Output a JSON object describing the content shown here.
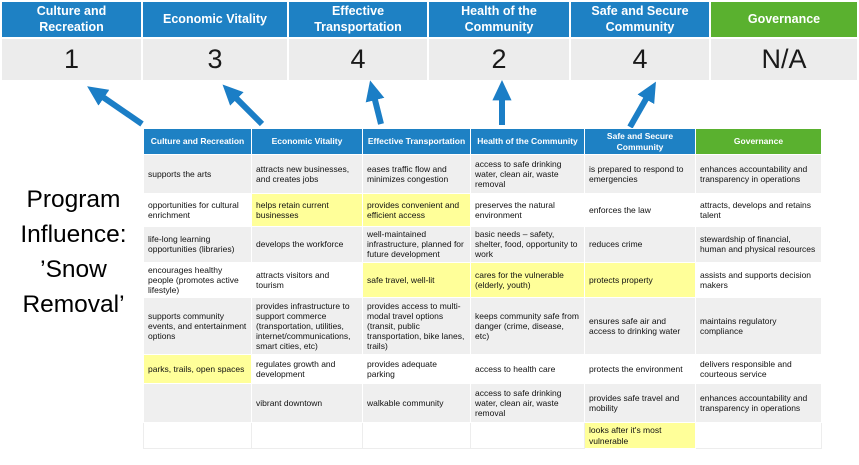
{
  "colors": {
    "header_blue": "#1e81c4",
    "header_green": "#5ab12f",
    "highlight_yellow": "#ffff99",
    "score_row_bg": "#ececec",
    "row_band_gray": "#efefef",
    "arrow_blue": "#1b7ec6"
  },
  "summary": {
    "columns": [
      {
        "label": "Culture and Recreation",
        "score": "1"
      },
      {
        "label": "Economic Vitality",
        "score": "3"
      },
      {
        "label": "Effective Transportation",
        "score": "4"
      },
      {
        "label": "Health of the Community",
        "score": "2"
      },
      {
        "label": "Safe and Secure Community",
        "score": "4"
      },
      {
        "label": "Governance",
        "score": "N/A"
      }
    ]
  },
  "program_label": "Program Influence: ’Snow Removal’",
  "matrix": {
    "headers": [
      "Culture and Recreation",
      "Economic Vitality",
      "Effective Transportation",
      "Health of the Community",
      "Safe and Secure Community",
      "Governance"
    ],
    "rows": [
      {
        "cells": [
          {
            "text": "supports the arts",
            "highlight": false
          },
          {
            "text": "attracts new businesses, and creates jobs",
            "highlight": false
          },
          {
            "text": "eases traffic flow and minimizes congestion",
            "highlight": true
          },
          {
            "text": "access to safe drinking water, clean air, waste removal",
            "highlight": false
          },
          {
            "text": "is prepared to respond to emergencies",
            "highlight": true
          },
          {
            "text": "enhances accountability and transparency in operations",
            "highlight": false
          }
        ]
      },
      {
        "cells": [
          {
            "text": "opportunities for cultural enrichment",
            "highlight": false
          },
          {
            "text": "helps retain current businesses",
            "highlight": true
          },
          {
            "text": "provides convenient and efficient access",
            "highlight": true
          },
          {
            "text": "preserves the natural environment",
            "highlight": false
          },
          {
            "text": "enforces the law",
            "highlight": false
          },
          {
            "text": "attracts, develops and retains talent",
            "highlight": false
          }
        ]
      },
      {
        "cells": [
          {
            "text": "life-long learning opportunities (libraries)",
            "highlight": false
          },
          {
            "text": "develops the workforce",
            "highlight": false
          },
          {
            "text": "well-maintained infrastructure, planned for future development",
            "highlight": false
          },
          {
            "text": "basic needs – safety, shelter, food, opportunity to work",
            "highlight": true
          },
          {
            "text": "reduces crime",
            "highlight": false
          },
          {
            "text": "stewardship of financial, human and physical resources",
            "highlight": false
          }
        ]
      },
      {
        "cells": [
          {
            "text": "encourages healthy people (promotes active lifestyle)",
            "highlight": false
          },
          {
            "text": "attracts visitors and tourism",
            "highlight": false
          },
          {
            "text": "safe travel, well-lit",
            "highlight": true
          },
          {
            "text": "cares for the vulnerable (elderly, youth)",
            "highlight": true
          },
          {
            "text": "protects property",
            "highlight": true
          },
          {
            "text": "assists and supports decision makers",
            "highlight": false
          }
        ]
      },
      {
        "cells": [
          {
            "text": "supports community events, and entertainment options",
            "highlight": false
          },
          {
            "text": "provides infrastructure to support commerce (transportation, utilities, internet/communications, smart cities, etc)",
            "highlight": true
          },
          {
            "text": "provides access to multi-modal travel options (transit, public transportation, bike lanes, trails)",
            "highlight": true
          },
          {
            "text": "keeps community safe from danger (crime, disease, etc)",
            "highlight": true
          },
          {
            "text": "ensures safe air and access to drinking water",
            "highlight": false
          },
          {
            "text": "maintains regulatory compliance",
            "highlight": false
          }
        ]
      },
      {
        "cells": [
          {
            "text": "parks, trails, open spaces",
            "highlight": true
          },
          {
            "text": "regulates growth and development",
            "highlight": false
          },
          {
            "text": "provides adequate parking",
            "highlight": false
          },
          {
            "text": "access to health care",
            "highlight": false
          },
          {
            "text": "protects the environment",
            "highlight": false
          },
          {
            "text": "delivers responsible and courteous service",
            "highlight": false
          }
        ]
      },
      {
        "cells": [
          {
            "text": "",
            "highlight": false
          },
          {
            "text": "vibrant downtown",
            "highlight": false
          },
          {
            "text": "walkable community",
            "highlight": false
          },
          {
            "text": "access to safe drinking water, clean air, waste removal",
            "highlight": false
          },
          {
            "text": "provides safe travel and mobility",
            "highlight": true
          },
          {
            "text": "enhances accountability and transparency in operations",
            "highlight": false
          }
        ]
      },
      {
        "cells": [
          {
            "text": "",
            "highlight": false
          },
          {
            "text": "",
            "highlight": false
          },
          {
            "text": "",
            "highlight": false
          },
          {
            "text": "",
            "highlight": false
          },
          {
            "text": "looks after it's most vulnerable",
            "highlight": true
          },
          {
            "text": "",
            "highlight": false
          }
        ]
      }
    ]
  }
}
